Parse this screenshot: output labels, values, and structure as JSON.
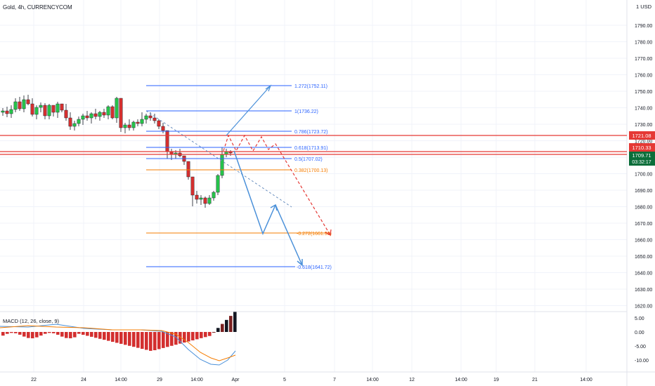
{
  "header": {
    "symbol": "Gold, 4h, CURRENCYCOM",
    "currency": "1 USD"
  },
  "axis": {
    "price_ticks": [
      "1790.00",
      "1780.00",
      "1770.00",
      "1760.00",
      "1750.00",
      "1740.00",
      "1730.00",
      "1720.00",
      "1710.00",
      "1700.00",
      "1690.00",
      "1680.00",
      "1670.00",
      "1660.00",
      "1650.00",
      "1640.00",
      "1630.00",
      "1620.00"
    ],
    "macd_ticks": [
      "5.00",
      "0.00",
      "-5.00",
      "-10.00"
    ],
    "time_ticks": [
      "22",
      "24",
      "14:00",
      "29",
      "14:00",
      "Apr",
      "5",
      "7",
      "14:00",
      "12",
      "14:00",
      "19",
      "21",
      "14:00"
    ]
  },
  "price_badges": {
    "resistance": "1721.08",
    "support": "1710.33",
    "last_price": "1709.71",
    "countdown": "03:32:17"
  },
  "fib_levels": [
    {
      "label": "1.272(1752.11)",
      "color": "#2962ff"
    },
    {
      "label": "1(1736.22)",
      "color": "#2962ff"
    },
    {
      "label": "0.786(1723.72)",
      "color": "#2962ff"
    },
    {
      "label": "0.618(1713.91)",
      "color": "#2962ff"
    },
    {
      "label": "0.5(1707.02)",
      "color": "#2962ff"
    },
    {
      "label": "0.382(1700.13)",
      "color": "#f57c00"
    },
    {
      "label": "-0.272(1661.93)",
      "color": "#f57c00"
    },
    {
      "label": "-0.618(1641.72)",
      "color": "#2962ff"
    }
  ],
  "macd": {
    "label": "MACD (12, 26, close, 9)"
  },
  "colors": {
    "up": "#26c24a",
    "down": "#d32f2f",
    "resistance_line": "#e53935",
    "projection": "#4a90d9",
    "dashed_projection": "#e53935"
  }
}
